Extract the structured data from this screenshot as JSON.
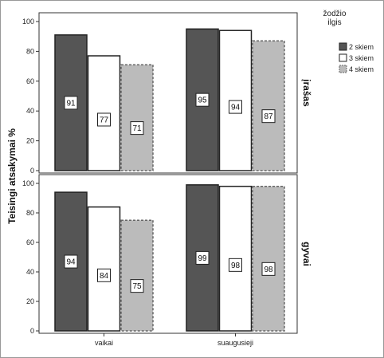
{
  "chart_data": {
    "type": "bar",
    "ylabel": "Teisingi atsakymai %",
    "ylim": [
      0,
      100
    ],
    "yticks": [
      0,
      20,
      40,
      60,
      80,
      100
    ],
    "categories": [
      "vaikai",
      "suaugusieji"
    ],
    "legend": {
      "title_lines": [
        "žodžio",
        "ilgis"
      ],
      "placement": "right"
    },
    "series_meta": [
      {
        "name": "2 skiem",
        "fill": "#555555",
        "stroke": "#222222",
        "dashed": false
      },
      {
        "name": "3 skiem",
        "fill": "#ffffff",
        "stroke": "#222222",
        "dashed": false
      },
      {
        "name": "4 skiem",
        "fill": "#bbbbbb",
        "stroke": "#666666",
        "dashed": true
      }
    ],
    "panels": [
      {
        "label": "įrašas",
        "series": [
          {
            "name": "2 skiem",
            "values": [
              91,
              95
            ]
          },
          {
            "name": "3 skiem",
            "values": [
              77,
              94
            ]
          },
          {
            "name": "4 skiem",
            "values": [
              71,
              87
            ]
          }
        ]
      },
      {
        "label": "gyvai",
        "series": [
          {
            "name": "2 skiem",
            "values": [
              94,
              99
            ]
          },
          {
            "name": "3 skiem",
            "values": [
              84,
              98
            ]
          },
          {
            "name": "4 skiem",
            "values": [
              75,
              98
            ]
          }
        ]
      }
    ]
  }
}
